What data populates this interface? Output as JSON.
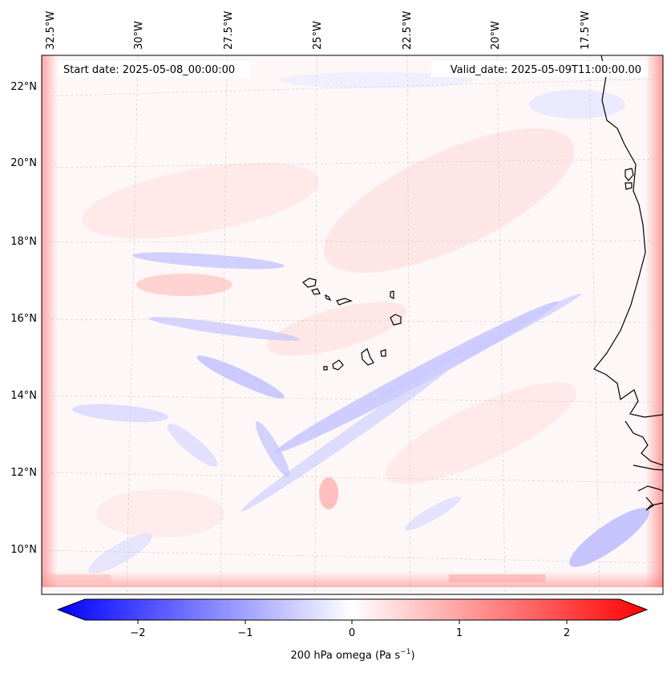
{
  "map": {
    "start_label": "Start date: 2025-05-08_00:00:00",
    "valid_label": "Valid_date: 2025-05-09T11:00:00.00",
    "lon_labels": [
      "32.5°W",
      "30°W",
      "27.5°W",
      "25°W",
      "22.5°W",
      "20°W",
      "17.5°W"
    ],
    "lat_labels": [
      "22°N",
      "20°N",
      "18°N",
      "16°N",
      "14°N",
      "12°N",
      "10°N"
    ],
    "colors": {
      "negative": "#0000ff",
      "zero": "#ffffff",
      "positive": "#ff0000"
    }
  },
  "colorbar": {
    "tick_labels": [
      "−2",
      "−1",
      "0",
      "1",
      "2"
    ],
    "label_main": "200 hPa omega (Pa s",
    "label_exp": "−1",
    "label_close": ")"
  }
}
